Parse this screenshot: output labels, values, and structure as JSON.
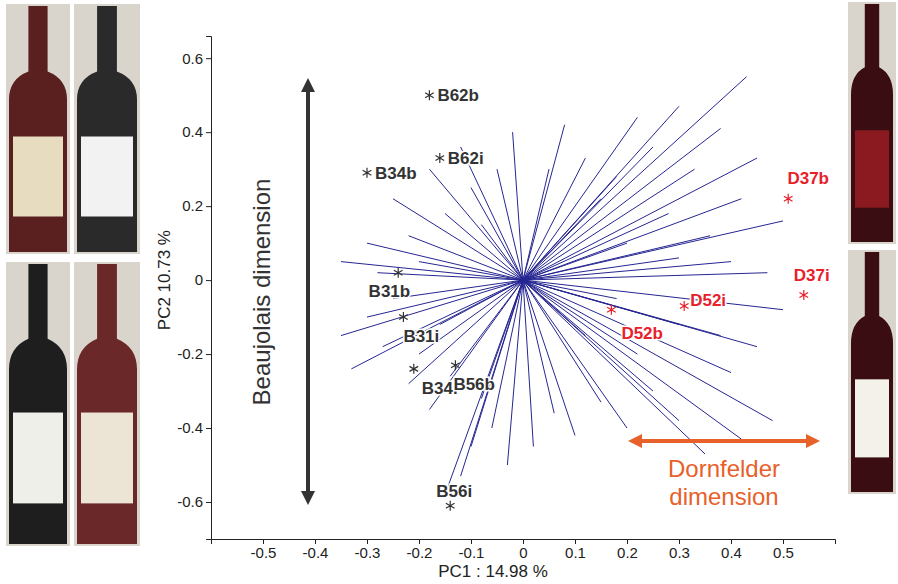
{
  "chart_data": {
    "type": "scatter",
    "x_label": "PC1 : 14.98 %",
    "y_label": "PC2 10.73 %",
    "xlim": [
      -0.6,
      0.6
    ],
    "ylim": [
      -0.7,
      0.66
    ],
    "xticks": [
      -0.5,
      -0.4,
      -0.3,
      -0.2,
      -0.1,
      0,
      0.1,
      0.2,
      0.3,
      0.4,
      0.5
    ],
    "yticks": [
      -0.6,
      -0.4,
      -0.2,
      0,
      0.2,
      0.4,
      0.6
    ],
    "marker": "asterisk",
    "points": [
      {
        "label": "B62b",
        "x": -0.18,
        "y": 0.5,
        "color": "#333333"
      },
      {
        "label": "B62i",
        "x": -0.16,
        "y": 0.33,
        "color": "#333333"
      },
      {
        "label": "B34b",
        "x": -0.3,
        "y": 0.29,
        "color": "#333333"
      },
      {
        "label": "B31b",
        "x": -0.24,
        "y": 0.02,
        "color": "#333333"
      },
      {
        "label": "B31i",
        "x": -0.23,
        "y": -0.1,
        "color": "#333333"
      },
      {
        "label": "B34i",
        "x": -0.21,
        "y": -0.24,
        "color": "#333333"
      },
      {
        "label": "B56b",
        "x": -0.13,
        "y": -0.23,
        "color": "#333333"
      },
      {
        "label": "B56i",
        "x": -0.14,
        "y": -0.61,
        "color": "#333333"
      },
      {
        "label": "D52b",
        "x": 0.17,
        "y": -0.08,
        "color": "#e8202a"
      },
      {
        "label": "D52i",
        "x": 0.31,
        "y": -0.07,
        "color": "#e8202a"
      },
      {
        "label": "D37b",
        "x": 0.51,
        "y": 0.22,
        "color": "#e8202a"
      },
      {
        "label": "D37i",
        "x": 0.54,
        "y": -0.04,
        "color": "#e8202a"
      }
    ],
    "loadings": {
      "type": "line",
      "color": "#262692",
      "x": [
        0.43,
        0.38,
        0.3,
        0.25,
        0.33,
        0.45,
        0.42,
        0.5,
        0.28,
        0.36,
        0.18,
        0.12,
        0.08,
        0.22,
        0.15,
        0.4,
        0.47,
        0.3,
        0.05,
        0.2,
        -0.02,
        -0.05,
        -0.1,
        -0.15,
        -0.22,
        -0.3,
        -0.25,
        -0.18,
        -0.12,
        -0.35,
        -0.28,
        -0.08,
        -0.2,
        -0.3,
        -0.33,
        -0.27,
        -0.22,
        -0.18,
        -0.15,
        -0.12,
        -0.1,
        -0.06,
        -0.25,
        -0.2,
        -0.14,
        -0.08,
        -0.03,
        -0.16,
        -0.35,
        0.02,
        0.06,
        0.1,
        0.15,
        0.2,
        0.25,
        0.3,
        0.35,
        0.42,
        0.48,
        0.4,
        0.45,
        0.38,
        0.3,
        0.22,
        0.5,
        0.12,
        0.18
      ],
      "y": [
        0.55,
        0.41,
        0.47,
        0.36,
        0.3,
        0.33,
        0.22,
        0.16,
        0.18,
        0.12,
        0.28,
        0.33,
        0.42,
        0.44,
        0.22,
        0.05,
        0.02,
        0.06,
        0.3,
        0.1,
        0.4,
        0.3,
        0.25,
        0.18,
        0.12,
        0.1,
        0.22,
        0.3,
        0.36,
        0.05,
        0.02,
        0.15,
        0.05,
        -0.1,
        -0.24,
        -0.18,
        -0.28,
        -0.35,
        -0.58,
        -0.53,
        -0.45,
        -0.4,
        -0.05,
        -0.2,
        -0.26,
        -0.32,
        -0.5,
        -0.12,
        -0.15,
        -0.45,
        -0.36,
        -0.42,
        -0.33,
        -0.4,
        -0.3,
        -0.38,
        -0.47,
        -0.43,
        -0.38,
        -0.25,
        -0.18,
        -0.15,
        -0.12,
        -0.2,
        -0.08,
        -0.15,
        -0.05
      ]
    },
    "annotations": [
      {
        "text": "Beaujolais dimension",
        "color": "#333333"
      },
      {
        "text": "Dornfelder dimension",
        "color": "#e8602a"
      }
    ]
  }
}
